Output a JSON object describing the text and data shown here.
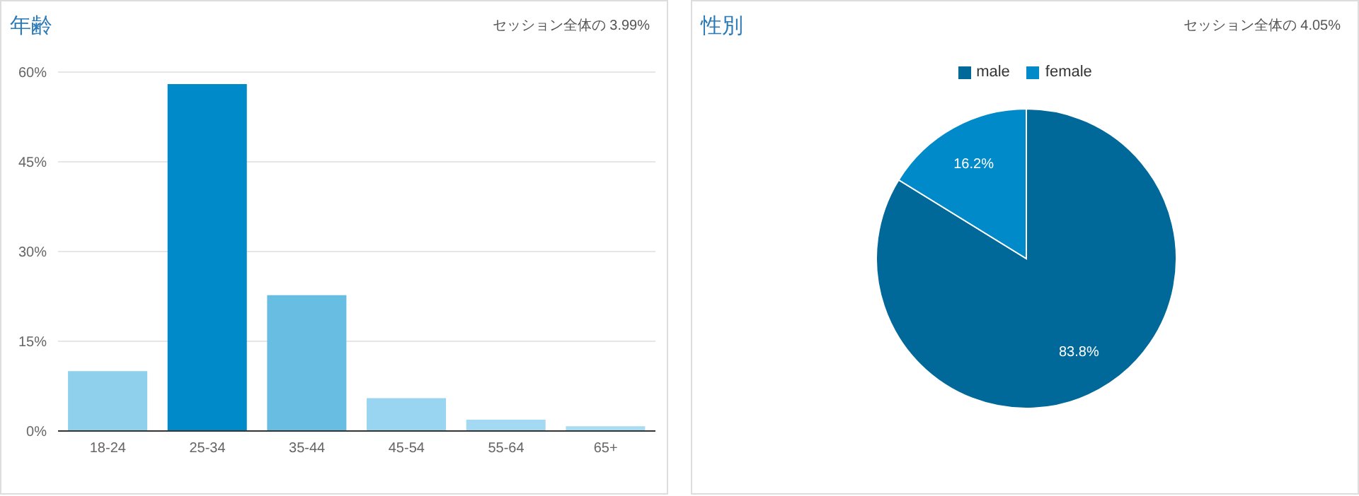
{
  "chart_data": [
    {
      "type": "bar",
      "title": "年齢",
      "subtitle": "セッション全体の 3.99%",
      "categories": [
        "18-24",
        "25-34",
        "35-44",
        "45-54",
        "55-64",
        "65+"
      ],
      "values": [
        10.0,
        58.0,
        22.7,
        5.5,
        1.9,
        0.8
      ],
      "colors": [
        "#8fd0ec",
        "#008ac9",
        "#68bde2",
        "#99d5f0",
        "#a3d9f2",
        "#a8dcf3"
      ],
      "ylim": [
        0,
        60
      ],
      "yticks": [
        {
          "value": 0,
          "label": "0%"
        },
        {
          "value": 15,
          "label": "15%"
        },
        {
          "value": 30,
          "label": "30%"
        },
        {
          "value": 45,
          "label": "45%"
        },
        {
          "value": 60,
          "label": "60%"
        }
      ],
      "grid": "y"
    },
    {
      "type": "pie",
      "title": "性別",
      "subtitle": "セッション全体の 4.05%",
      "categories": [
        "male",
        "female"
      ],
      "values": [
        83.8,
        16.2
      ],
      "colors": [
        "#00699a",
        "#008ac9"
      ],
      "value_labels": [
        "83.8%",
        "16.2%"
      ],
      "legend": "top"
    }
  ]
}
